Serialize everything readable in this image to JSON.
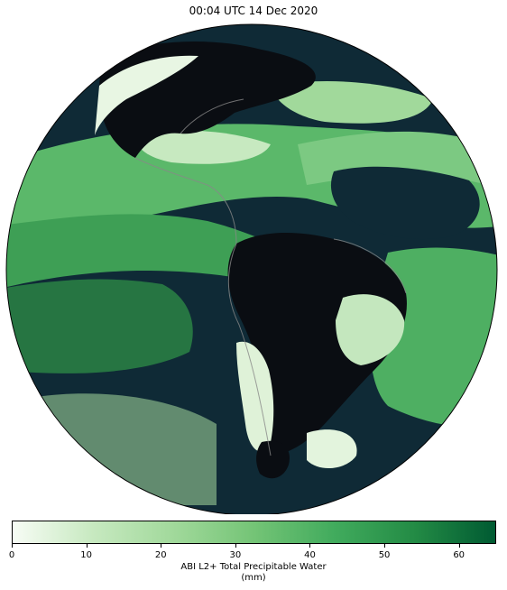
{
  "title": "00:04 UTC 14 Dec 2020",
  "colorbar": {
    "label_line1": "ABI L2+ Total Precipitable Water",
    "label_line2": "(mm)",
    "min": 0,
    "max": 65,
    "ticks": [
      0,
      10,
      20,
      30,
      40,
      50,
      60
    ],
    "colors": [
      "#f7fcf5",
      "#c7e9c0",
      "#a1d99b",
      "#74c476",
      "#41ab5d",
      "#238b45",
      "#005a32"
    ]
  },
  "map": {
    "projection": "geostationary full disk",
    "space_color": "#ffffff",
    "ocean_nodata_color": "#0f2a36",
    "land_nodata_color": "#0a0d12",
    "coastline_color": "#888888"
  }
}
